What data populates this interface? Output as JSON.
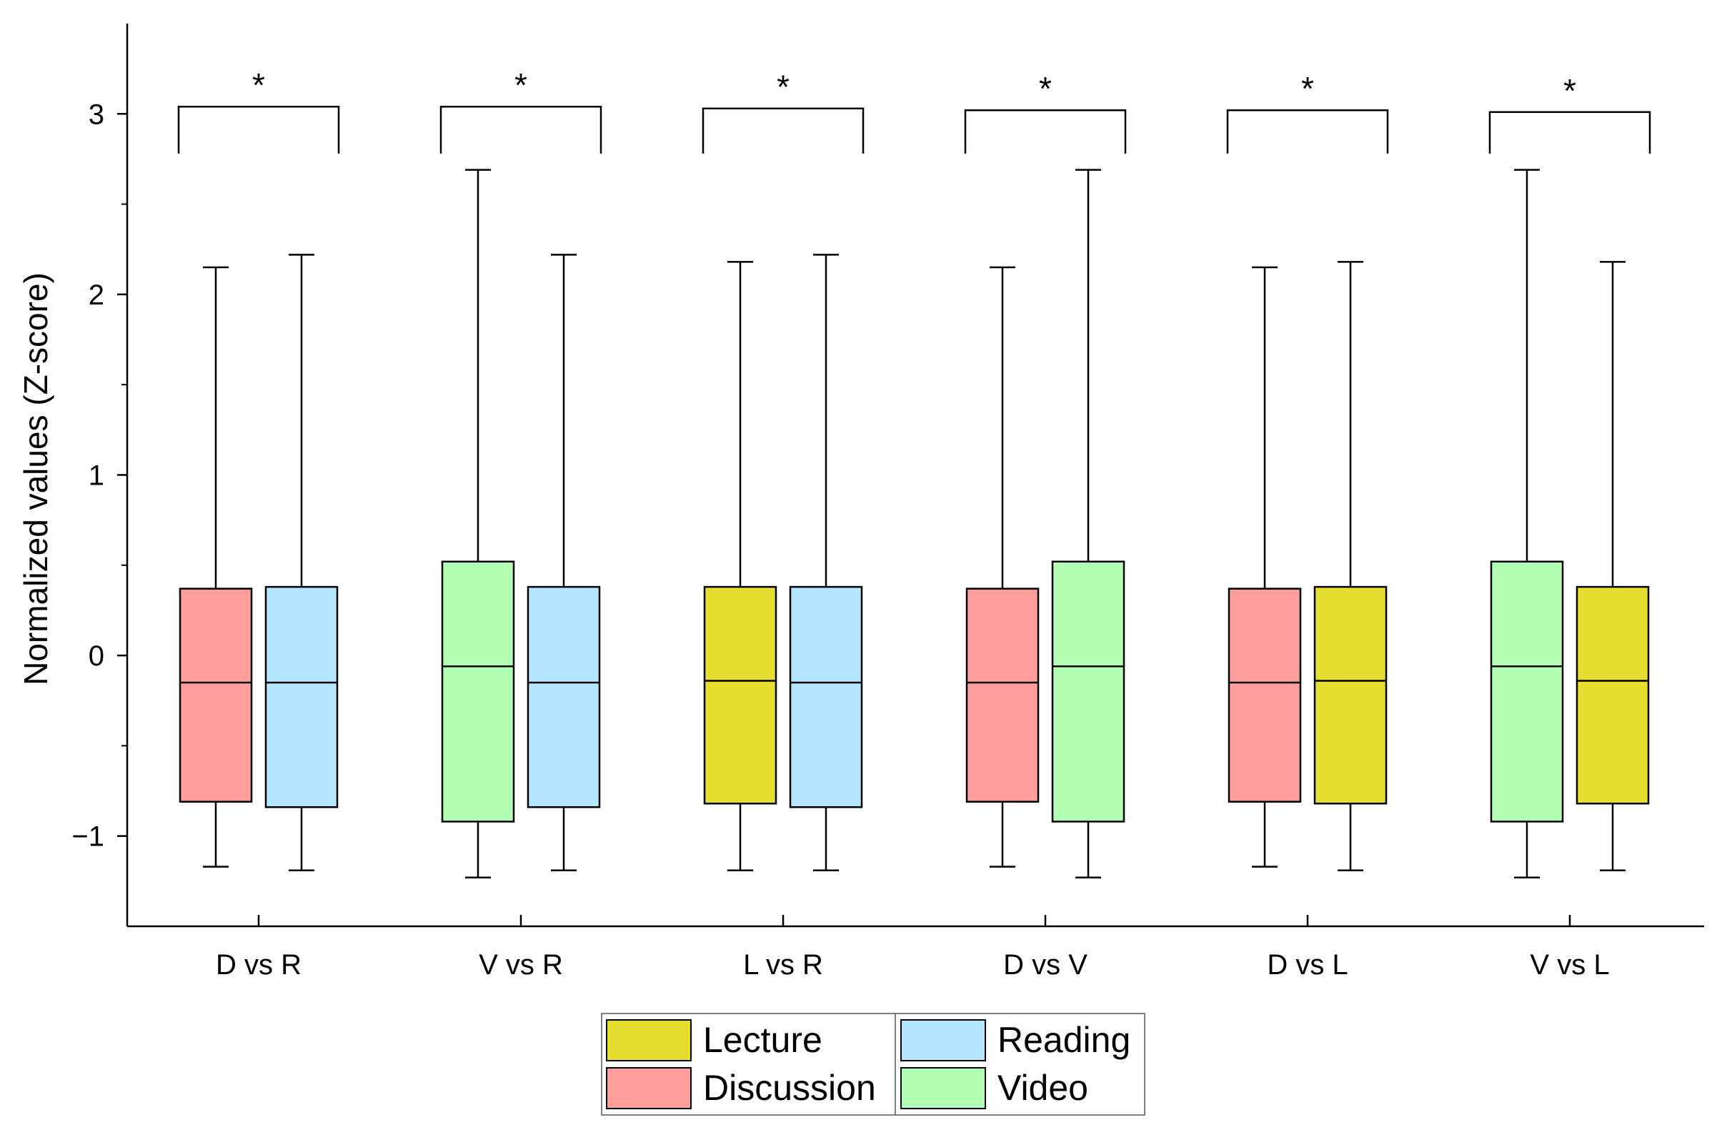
{
  "chart_data": {
    "type": "boxplot",
    "title": "",
    "xlabel": "",
    "ylabel": "Normalized values (Z-score)",
    "ylim": [
      -1.5,
      3.5
    ],
    "yticks": [
      -1,
      0,
      1,
      2,
      3
    ],
    "ytick_labels": [
      "−1",
      "0",
      "1",
      "2",
      "3"
    ],
    "categories": [
      "D vs R",
      "V vs R",
      "L vs R",
      "D vs V",
      "D vs L",
      "V vs L"
    ],
    "significance_marker": "*",
    "groups": {
      "Discussion": {
        "color": "#FF9E9B",
        "whisker_low": -1.17,
        "q1": -0.81,
        "median": -0.15,
        "q3": 0.37,
        "whisker_high": 2.15
      },
      "Reading": {
        "color": "#B5E6FF",
        "whisker_low": -1.19,
        "q1": -0.84,
        "median": -0.15,
        "q3": 0.38,
        "whisker_high": 2.22
      },
      "Video": {
        "color": "#B3FFB3",
        "whisker_low": -1.23,
        "q1": -0.92,
        "median": -0.06,
        "q3": 0.52,
        "whisker_high": 2.69
      },
      "Lecture": {
        "color": "#E5DD30",
        "whisker_low": -1.19,
        "q1": -0.82,
        "median": -0.14,
        "q3": 0.38,
        "whisker_high": 2.18
      }
    },
    "comparisons": [
      {
        "label": "D vs R",
        "left": "Discussion",
        "right": "Reading",
        "bracket_y": 3.04,
        "significance": "*"
      },
      {
        "label": "V vs R",
        "left": "Video",
        "right": "Reading",
        "bracket_y": 3.04,
        "significance": "*"
      },
      {
        "label": "L vs R",
        "left": "Lecture",
        "right": "Reading",
        "bracket_y": 3.03,
        "significance": "*"
      },
      {
        "label": "D vs V",
        "left": "Discussion",
        "right": "Video",
        "bracket_y": 3.02,
        "significance": "*"
      },
      {
        "label": "D vs L",
        "left": "Discussion",
        "right": "Lecture",
        "bracket_y": 3.02,
        "significance": "*"
      },
      {
        "label": "V vs L",
        "left": "Video",
        "right": "Lecture",
        "bracket_y": 3.01,
        "significance": "*"
      }
    ],
    "legend": {
      "placement": "bottom-center",
      "entries": [
        {
          "name": "Lecture",
          "color": "#E5DD30"
        },
        {
          "name": "Reading",
          "color": "#B5E6FF"
        },
        {
          "name": "Discussion",
          "color": "#FF9E9B"
        },
        {
          "name": "Video",
          "color": "#B3FFB3"
        }
      ]
    },
    "grid": false
  }
}
